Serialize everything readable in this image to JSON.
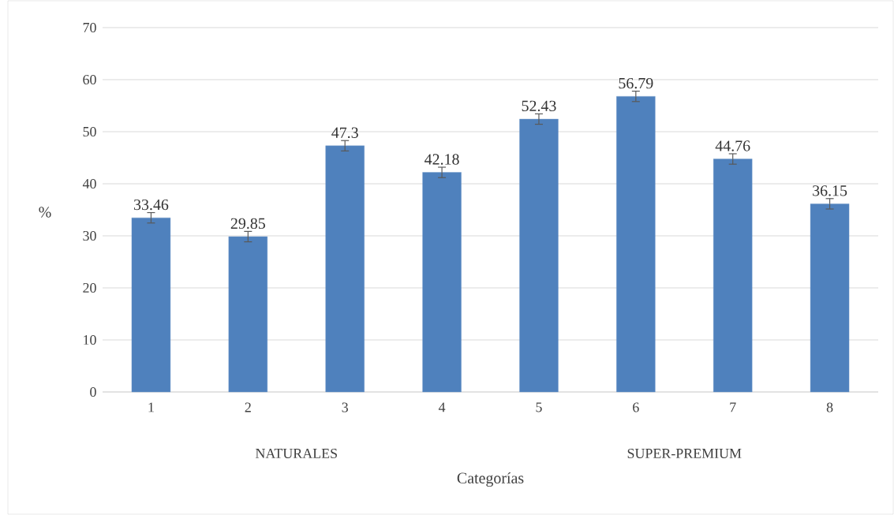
{
  "chart_data": {
    "type": "bar",
    "xlabel": "Categorías",
    "ylabel": "%",
    "categories": [
      "1",
      "2",
      "3",
      "4",
      "5",
      "6",
      "7",
      "8"
    ],
    "values": [
      33.46,
      29.85,
      47.3,
      42.18,
      52.43,
      56.79,
      44.76,
      36.15
    ],
    "errors": [
      1,
      1,
      1,
      1,
      1,
      1,
      1,
      1
    ],
    "color": "#4f81bd",
    "data_labels": true,
    "grid": "y",
    "ylim": [
      0,
      70
    ],
    "yticks": [
      0,
      10,
      20,
      30,
      40,
      50,
      60,
      70
    ],
    "annotations": [
      "NATURALES",
      "SUPER-PREMIUM"
    ]
  }
}
